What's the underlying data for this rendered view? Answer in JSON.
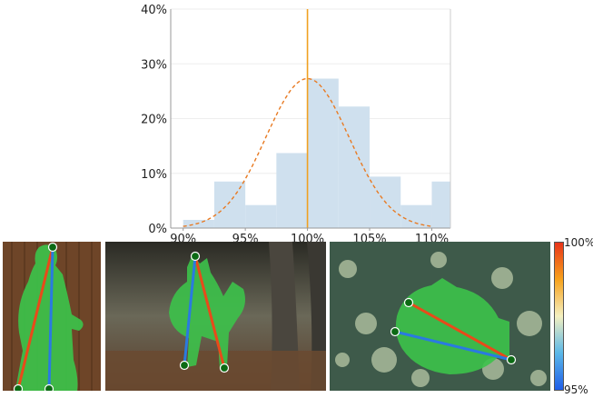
{
  "chart_data": {
    "type": "bar",
    "x_ticks": [
      "90%",
      "95%",
      "100%",
      "105%",
      "110%"
    ],
    "y_ticks": [
      "0%",
      "10%",
      "20%",
      "30%",
      "40%"
    ],
    "xlim": [
      0.89,
      1.115
    ],
    "ylim": [
      0,
      0.4
    ],
    "bins": [
      {
        "start": 0.9,
        "end": 0.925,
        "value": 0.015
      },
      {
        "start": 0.925,
        "end": 0.95,
        "value": 0.085
      },
      {
        "start": 0.95,
        "end": 0.975,
        "value": 0.042
      },
      {
        "start": 0.975,
        "end": 1.0,
        "value": 0.137
      },
      {
        "start": 1.0,
        "end": 1.025,
        "value": 0.273
      },
      {
        "start": 1.025,
        "end": 1.05,
        "value": 0.222
      },
      {
        "start": 1.05,
        "end": 1.075,
        "value": 0.094
      },
      {
        "start": 1.075,
        "end": 1.1,
        "value": 0.042
      },
      {
        "start": 1.1,
        "end": 1.125,
        "value": 0.085
      }
    ],
    "normal_fit": {
      "mean": 1.0,
      "sd": 0.0335,
      "peak": 0.273
    },
    "reference_line": 1.0,
    "bar_color": "#cfe0ee",
    "fit_color": "#e87a22",
    "reference_color": "#f0a020"
  },
  "colorbar": {
    "max_label": "100%",
    "min_label": "95%",
    "colors": [
      "#e8341a",
      "#f7a21c",
      "#f4f0c0",
      "#5bb8e8",
      "#1f5ee8"
    ]
  },
  "photos": [
    {
      "subject": "person",
      "mask_color": "#3cc24a"
    },
    {
      "subject": "cat",
      "mask_color": "#3cc24a"
    },
    {
      "subject": "fish",
      "mask_color": "#3cc24a"
    }
  ]
}
